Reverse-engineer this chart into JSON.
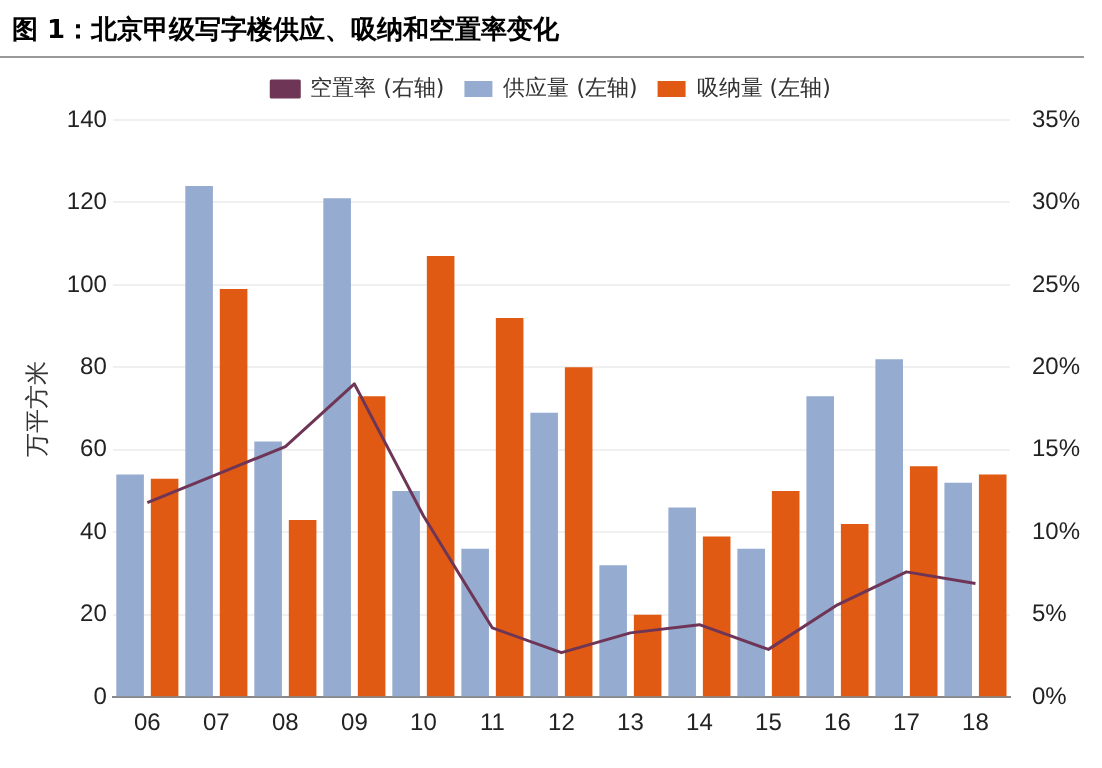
{
  "chart_data": {
    "type": "bar",
    "title": "图 1：北京甲级写字楼供应、吸纳和空置率变化",
    "ylabel": "万平方米",
    "categories": [
      "06",
      "07",
      "08",
      "09",
      "10",
      "11",
      "12",
      "13",
      "14",
      "15",
      "16",
      "17",
      "18"
    ],
    "series": [
      {
        "name": "供应量 (左轴)",
        "color": "#95abd0",
        "values": [
          54,
          124,
          62,
          121,
          50,
          36,
          69,
          32,
          46,
          36,
          73,
          82,
          52
        ]
      },
      {
        "name": "吸纳量 (左轴)",
        "color": "#e05a13",
        "values": [
          53,
          99,
          43,
          73,
          107,
          92,
          80,
          20,
          39,
          50,
          42,
          56,
          54
        ]
      },
      {
        "name": "空置率 (右轴)",
        "type": "line",
        "axis": "y2",
        "color": "#6e3556",
        "marker": "none",
        "values": [
          11.8,
          13.5,
          15.2,
          19,
          11,
          4.2,
          2.7,
          3.9,
          4.4,
          2.9,
          5.6,
          7.6,
          6.9
        ]
      }
    ],
    "ylim": [
      0,
      140
    ],
    "yticks": [
      0,
      20,
      40,
      60,
      80,
      100,
      120,
      140
    ],
    "y2lim": [
      0,
      35
    ],
    "y2ticks": [
      {
        "value": 0,
        "label": "0%"
      },
      {
        "value": 5,
        "label": "5%"
      },
      {
        "value": 10,
        "label": "10%"
      },
      {
        "value": 15,
        "label": "15%"
      },
      {
        "value": 20,
        "label": "20%"
      },
      {
        "value": 25,
        "label": "25%"
      },
      {
        "value": 30,
        "label": "30%"
      },
      {
        "value": 35,
        "label": "35%"
      }
    ],
    "grid": "y",
    "legend": "top"
  }
}
